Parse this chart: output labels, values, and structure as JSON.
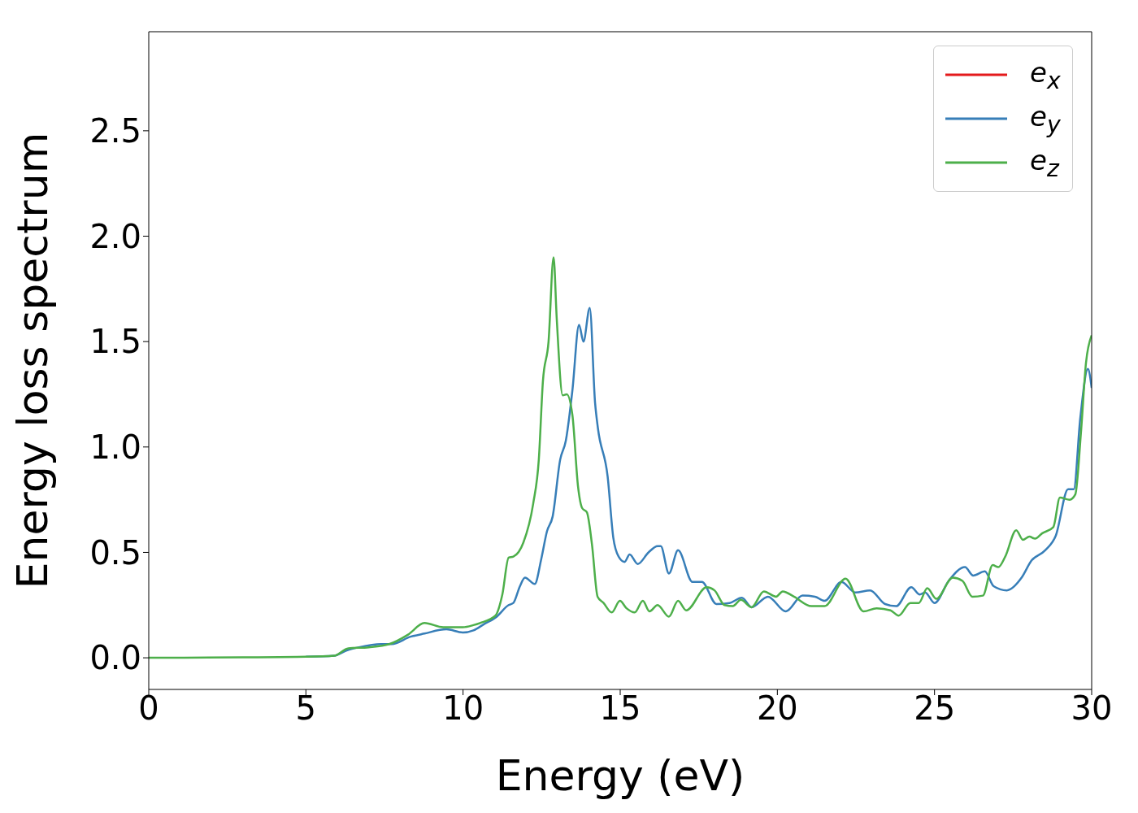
{
  "chart_data": {
    "type": "line",
    "xlabel": "Energy (eV)",
    "ylabel": "Energy loss spectrum",
    "xlim": [
      0,
      30
    ],
    "xticks": [
      0,
      5,
      10,
      15,
      20,
      25,
      30
    ],
    "ylim": [
      -0.15,
      2.97
    ],
    "yticks": [
      {
        "value": 0,
        "label": "0.0"
      },
      {
        "value": 0.5,
        "label": "0.5"
      },
      {
        "value": 1,
        "label": "1.0"
      },
      {
        "value": 1.5,
        "label": "1.5"
      },
      {
        "value": 2,
        "label": "2.0"
      },
      {
        "value": 2.5,
        "label": "2.5"
      }
    ],
    "grid": false,
    "legend": "top right",
    "marker": "none",
    "line_style": "solid",
    "series": [
      {
        "name": "e$_{x}$",
        "color": "#e41a1c"
      },
      {
        "name": "e$_{y}$",
        "color": "#377eb8",
        "x": [
          5,
          5.9,
          6.3,
          6.69,
          7.39,
          7.73,
          8.33,
          8.77,
          9.47,
          9.99,
          10.33,
          10.67,
          11.03,
          11.45,
          11.6,
          11.81,
          11.97,
          12.28,
          12.49,
          12.67,
          12.85,
          13.09,
          13.27,
          13.48,
          13.69,
          13.83,
          14.03,
          14.2,
          14.29,
          14.6,
          14.78,
          14.95,
          15.14,
          15.3,
          15.56,
          15.9,
          16.19,
          16.29,
          16.55,
          16.84,
          17.3,
          17.6,
          18.06,
          18.48,
          18.87,
          19.18,
          19.7,
          20.27,
          20.8,
          21.2,
          21.5,
          22.04,
          22.48,
          22.95,
          23.43,
          23.78,
          24.26,
          24.53,
          24.7,
          25.0,
          25.45,
          25.97,
          26.23,
          26.6,
          26.88,
          27.3,
          27.77,
          28.08,
          28.52,
          28.86,
          29.25,
          29.43,
          29.64,
          29.88,
          30
        ],
        "values": [
          0.005,
          0.01,
          0.035,
          0.05,
          0.065,
          0.065,
          0.1,
          0.115,
          0.135,
          0.12,
          0.13,
          0.16,
          0.19,
          0.25,
          0.26,
          0.34,
          0.38,
          0.35,
          0.47,
          0.6,
          0.67,
          0.94,
          1.03,
          1.27,
          1.58,
          1.5,
          1.66,
          1.21,
          1.09,
          0.86,
          0.57,
          0.48,
          0.455,
          0.49,
          0.445,
          0.5,
          0.53,
          0.53,
          0.4,
          0.51,
          0.36,
          0.36,
          0.255,
          0.26,
          0.285,
          0.24,
          0.29,
          0.22,
          0.295,
          0.29,
          0.27,
          0.36,
          0.31,
          0.32,
          0.255,
          0.245,
          0.335,
          0.3,
          0.31,
          0.26,
          0.365,
          0.43,
          0.39,
          0.41,
          0.34,
          0.32,
          0.38,
          0.46,
          0.51,
          0.58,
          0.8,
          0.8,
          1.14,
          1.37,
          1.28
        ]
      },
      {
        "name": "e$_{z}$",
        "color": "#4daf4a",
        "x": [
          0,
          3,
          5,
          5.9,
          6.35,
          7.0,
          7.65,
          8.25,
          8.77,
          9.37,
          9.99,
          10.33,
          10.54,
          11.03,
          11.25,
          11.45,
          11.6,
          11.92,
          12.23,
          12.41,
          12.54,
          12.72,
          12.88,
          12.98,
          13.17,
          13.3,
          13.48,
          13.66,
          13.79,
          13.94,
          14.1,
          14.28,
          14.47,
          14.73,
          14.99,
          15.2,
          15.46,
          15.72,
          15.93,
          16.19,
          16.55,
          16.84,
          17.1,
          17.75,
          18.0,
          18.32,
          18.58,
          18.84,
          19.18,
          19.57,
          19.96,
          20.17,
          20.53,
          21.08,
          21.5,
          22.17,
          22.74,
          23.16,
          23.6,
          23.86,
          24.23,
          24.5,
          24.77,
          25.06,
          25.58,
          25.89,
          26.2,
          26.54,
          26.85,
          27.03,
          27.25,
          27.6,
          27.81,
          28.02,
          28.2,
          28.42,
          28.78,
          28.99,
          29.3,
          29.48,
          29.66,
          29.82,
          30
        ],
        "values": [
          0,
          0.002,
          0.005,
          0.01,
          0.045,
          0.05,
          0.065,
          0.11,
          0.165,
          0.145,
          0.145,
          0.155,
          0.165,
          0.2,
          0.3,
          0.475,
          0.48,
          0.547,
          0.73,
          0.94,
          1.31,
          1.5,
          1.9,
          1.61,
          1.245,
          1.25,
          1.15,
          0.81,
          0.71,
          0.69,
          0.54,
          0.29,
          0.26,
          0.215,
          0.27,
          0.235,
          0.215,
          0.27,
          0.22,
          0.25,
          0.195,
          0.27,
          0.225,
          0.335,
          0.32,
          0.25,
          0.245,
          0.275,
          0.24,
          0.315,
          0.29,
          0.315,
          0.29,
          0.245,
          0.245,
          0.375,
          0.22,
          0.235,
          0.225,
          0.2,
          0.26,
          0.26,
          0.33,
          0.28,
          0.38,
          0.365,
          0.29,
          0.295,
          0.44,
          0.43,
          0.48,
          0.605,
          0.56,
          0.575,
          0.565,
          0.59,
          0.62,
          0.76,
          0.75,
          0.775,
          1.07,
          1.4,
          1.53
        ]
      }
    ]
  }
}
